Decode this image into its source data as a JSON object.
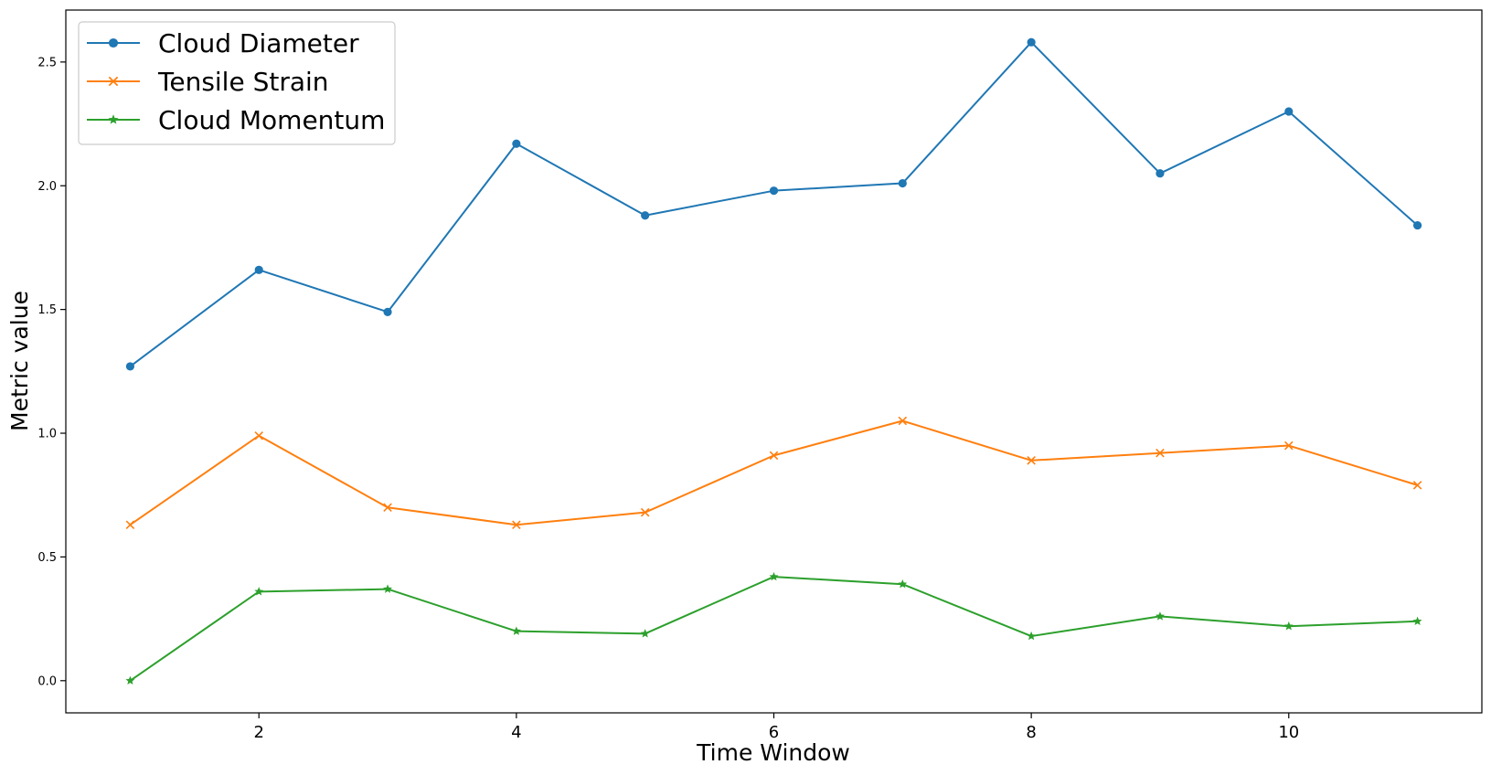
{
  "chart_data": {
    "type": "line",
    "title": "",
    "xlabel": "Time Window",
    "ylabel": "Metric value",
    "x": [
      1,
      2,
      3,
      4,
      5,
      6,
      7,
      8,
      9,
      10,
      11
    ],
    "xlim": [
      0.5,
      11.5
    ],
    "ylim": [
      -0.13,
      2.71
    ],
    "xticks": [
      2,
      4,
      6,
      8,
      10
    ],
    "xtick_labels": [
      "2",
      "4",
      "6",
      "8",
      "10"
    ],
    "yticks": [
      0.0,
      0.5,
      1.0,
      1.5,
      2.0,
      2.5
    ],
    "ytick_labels": [
      "0.0",
      "0.5",
      "1.0",
      "1.5",
      "2.0",
      "2.5"
    ],
    "grid": false,
    "legend_position": "top-left",
    "series": [
      {
        "name": "Cloud Diameter",
        "color": "#1f77b4",
        "marker": "circle",
        "values": [
          1.27,
          1.66,
          1.49,
          2.17,
          1.88,
          1.98,
          2.01,
          2.58,
          2.05,
          2.3,
          1.84
        ]
      },
      {
        "name": "Tensile Strain",
        "color": "#ff7f0e",
        "marker": "x",
        "values": [
          0.63,
          0.99,
          0.7,
          0.63,
          0.68,
          0.91,
          1.05,
          0.89,
          0.92,
          0.95,
          0.79
        ]
      },
      {
        "name": "Cloud Momentum",
        "color": "#2ca02c",
        "marker": "star",
        "values": [
          0.0,
          0.36,
          0.37,
          0.2,
          0.19,
          0.42,
          0.39,
          0.18,
          0.26,
          0.22,
          0.24
        ]
      }
    ]
  }
}
